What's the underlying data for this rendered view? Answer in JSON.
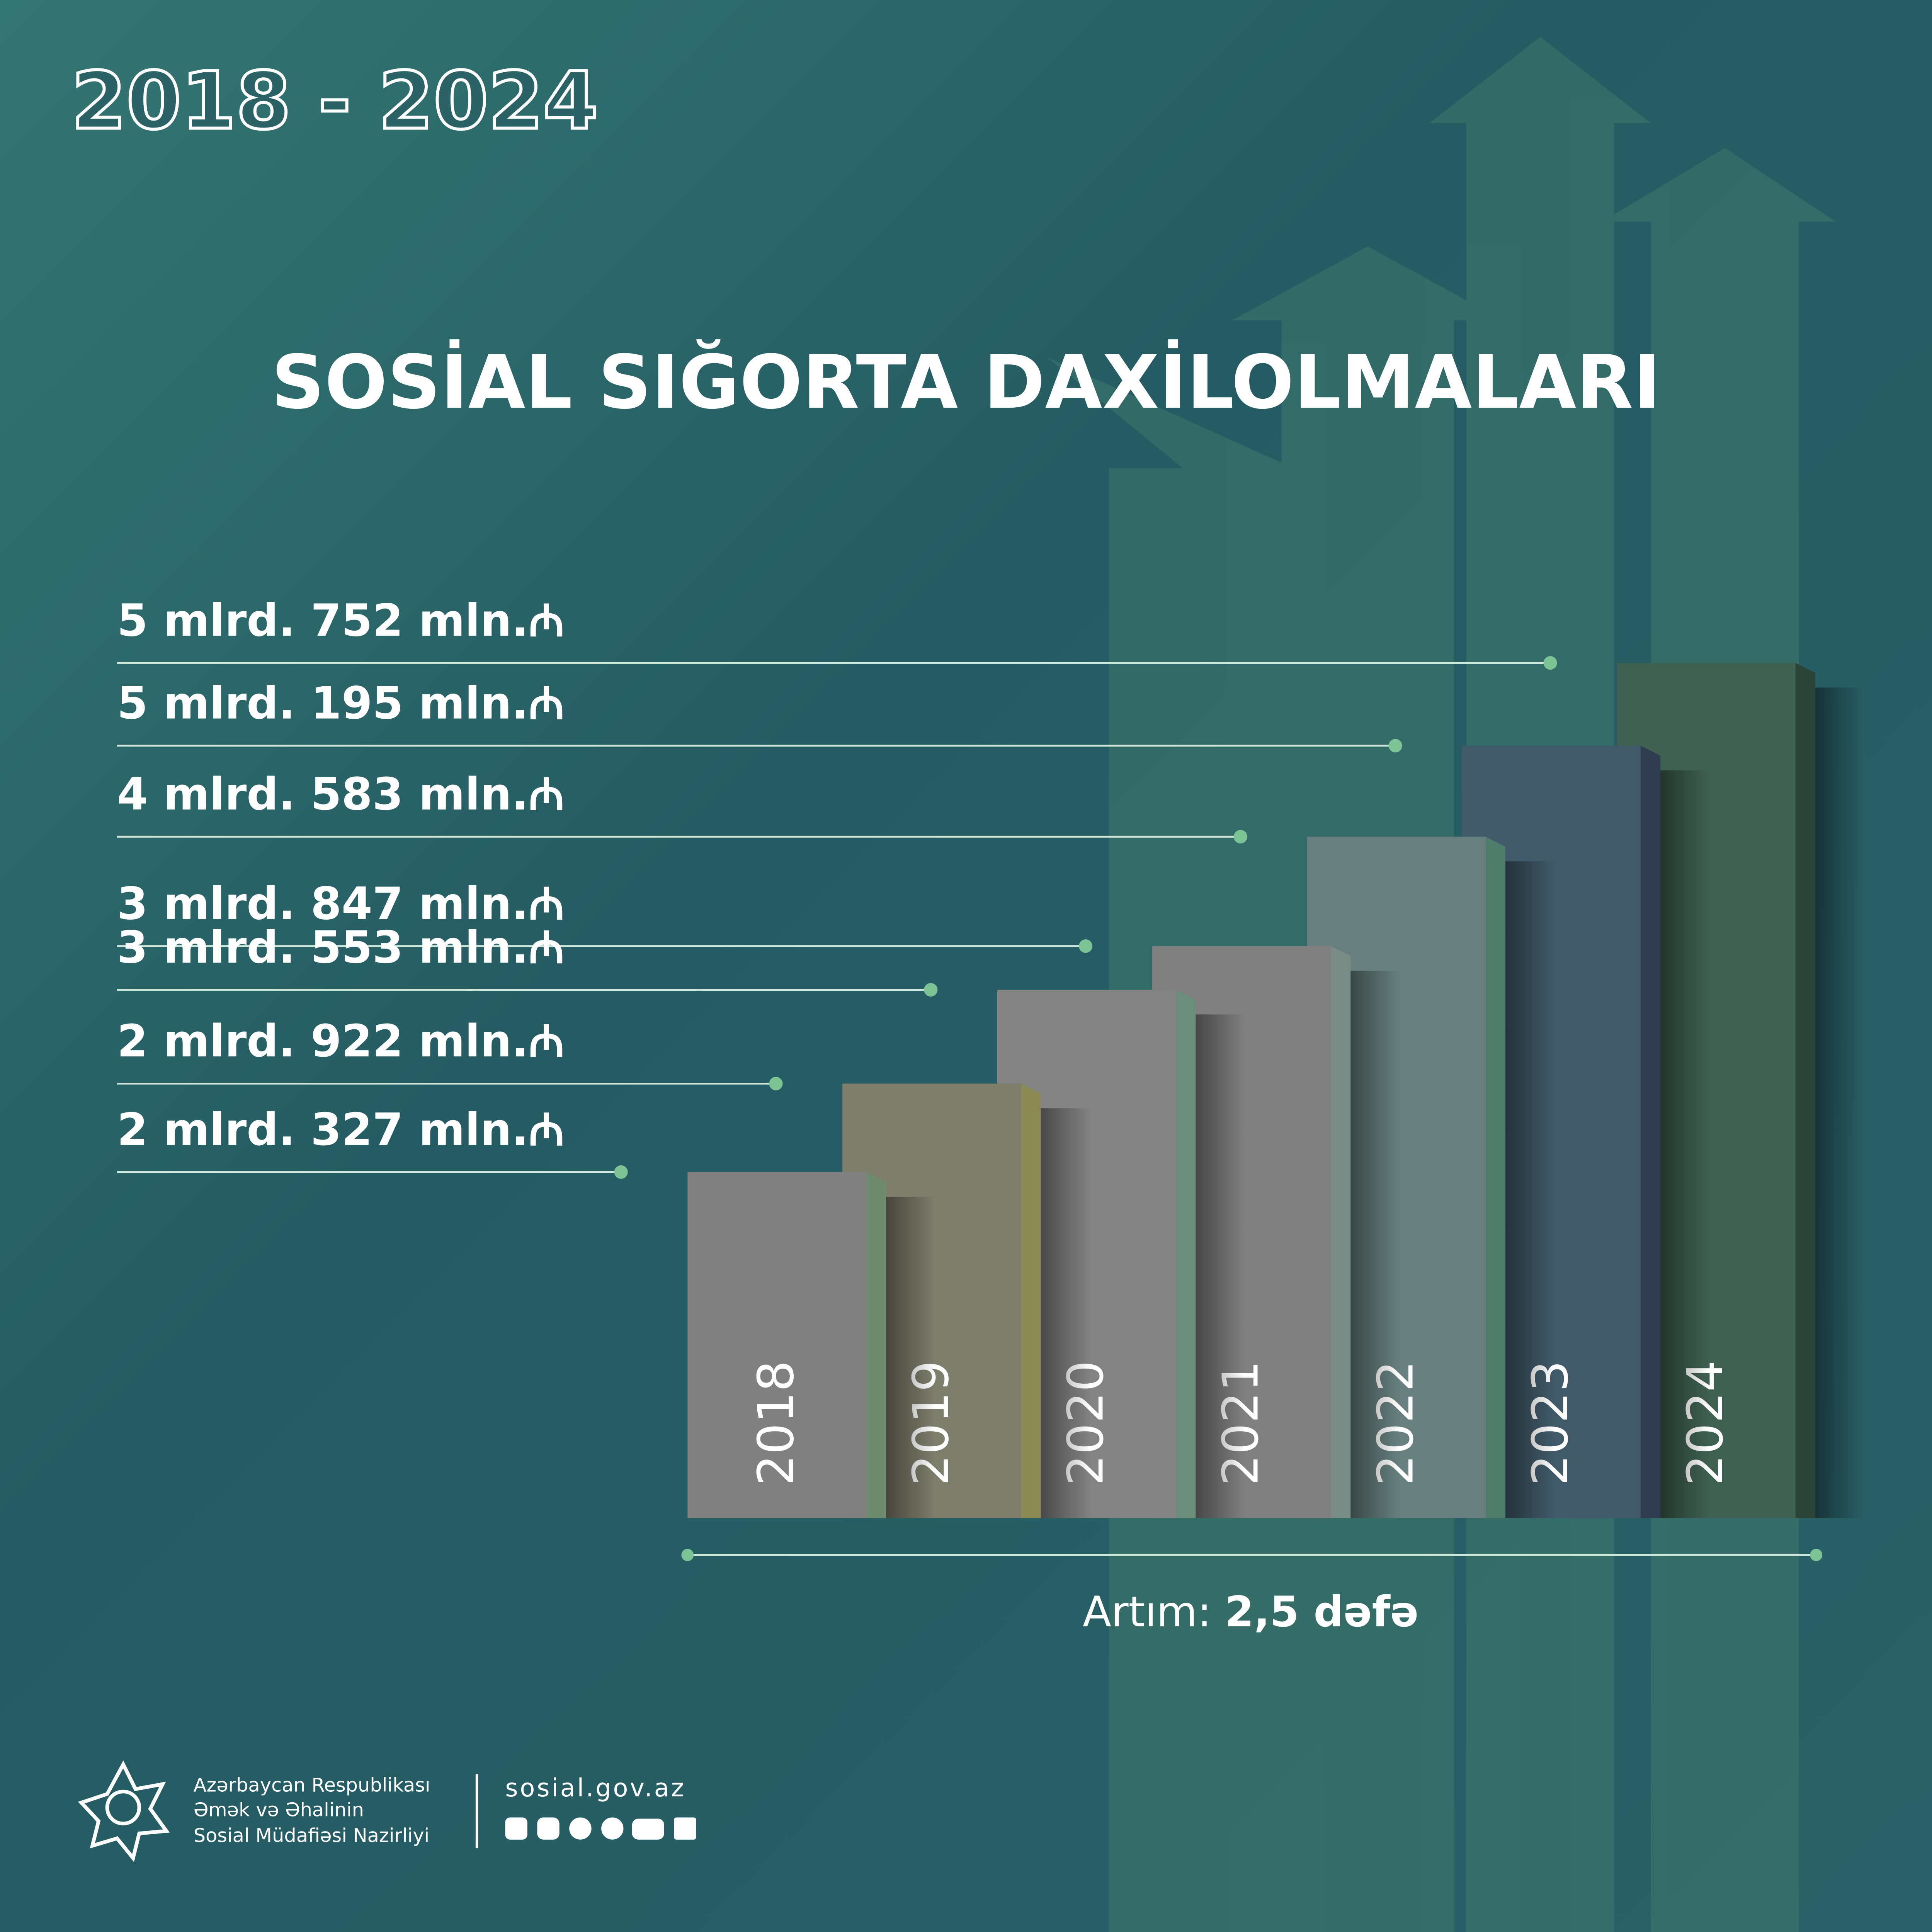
{
  "header": "2018 - 2024",
  "chart_data": {
    "type": "bar",
    "title": "SOSİAL SIĞORTA DAXİLOLMALARI",
    "categories": [
      "2018",
      "2019",
      "2020",
      "2021",
      "2022",
      "2023",
      "2024"
    ],
    "values": [
      2327,
      2922,
      3553,
      3847,
      4583,
      5195,
      5752
    ],
    "value_labels": [
      "2 mlrd. 327 mln.₼",
      "2 mlrd. 922 mln.₼",
      "3 mlrd. 553 mln.₼",
      "3 mlrd. 847 mln.₼",
      "4 mlrd. 583 mln.₼",
      "5 mlrd. 195 mln.₼",
      "5 mlrd. 752 mln.₼"
    ],
    "colors": [
      "#808080",
      "#7e7e6c",
      "#838383",
      "#808080",
      "#67807f",
      "#415a6a",
      "#3f6152"
    ],
    "side_colors": [
      "#6f8a6f",
      "#8b8a55",
      "#6c8c7c",
      "#7a8c86",
      "#4e7e6b",
      "#2f3c50",
      "#2a4237"
    ],
    "annotation": {
      "label": "Artım:",
      "value": "2,5 dəfə"
    }
  },
  "footer": {
    "ministry": [
      "Azərbaycan Respublikası",
      "Əmək və Əhalinin",
      "Sosial Müdafiəsi Nazirliyi"
    ],
    "website": "sosial.gov.az"
  }
}
